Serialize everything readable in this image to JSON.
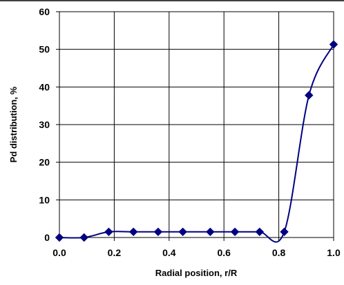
{
  "chart_data": {
    "type": "line",
    "title": "",
    "xlabel": "Radial position, r/R",
    "ylabel": "Pd distribution, %",
    "xlim": [
      0.0,
      1.0
    ],
    "ylim": [
      0,
      60
    ],
    "x_ticks": [
      "0.0",
      "0.2",
      "0.4",
      "0.6",
      "0.8",
      "1.0"
    ],
    "y_ticks": [
      "0",
      "10",
      "20",
      "30",
      "40",
      "50",
      "60"
    ],
    "grid": true,
    "legend": "none",
    "series": [
      {
        "color": "#000080",
        "marker": "diamond",
        "smooth": true,
        "x": [
          0.0,
          0.09,
          0.18,
          0.27,
          0.36,
          0.45,
          0.55,
          0.64,
          0.73,
          0.82,
          0.91,
          1.0
        ],
        "y": [
          0.0,
          0.0,
          1.5,
          1.5,
          1.5,
          1.5,
          1.5,
          1.5,
          1.5,
          1.5,
          37.8,
          51.3
        ]
      }
    ]
  }
}
